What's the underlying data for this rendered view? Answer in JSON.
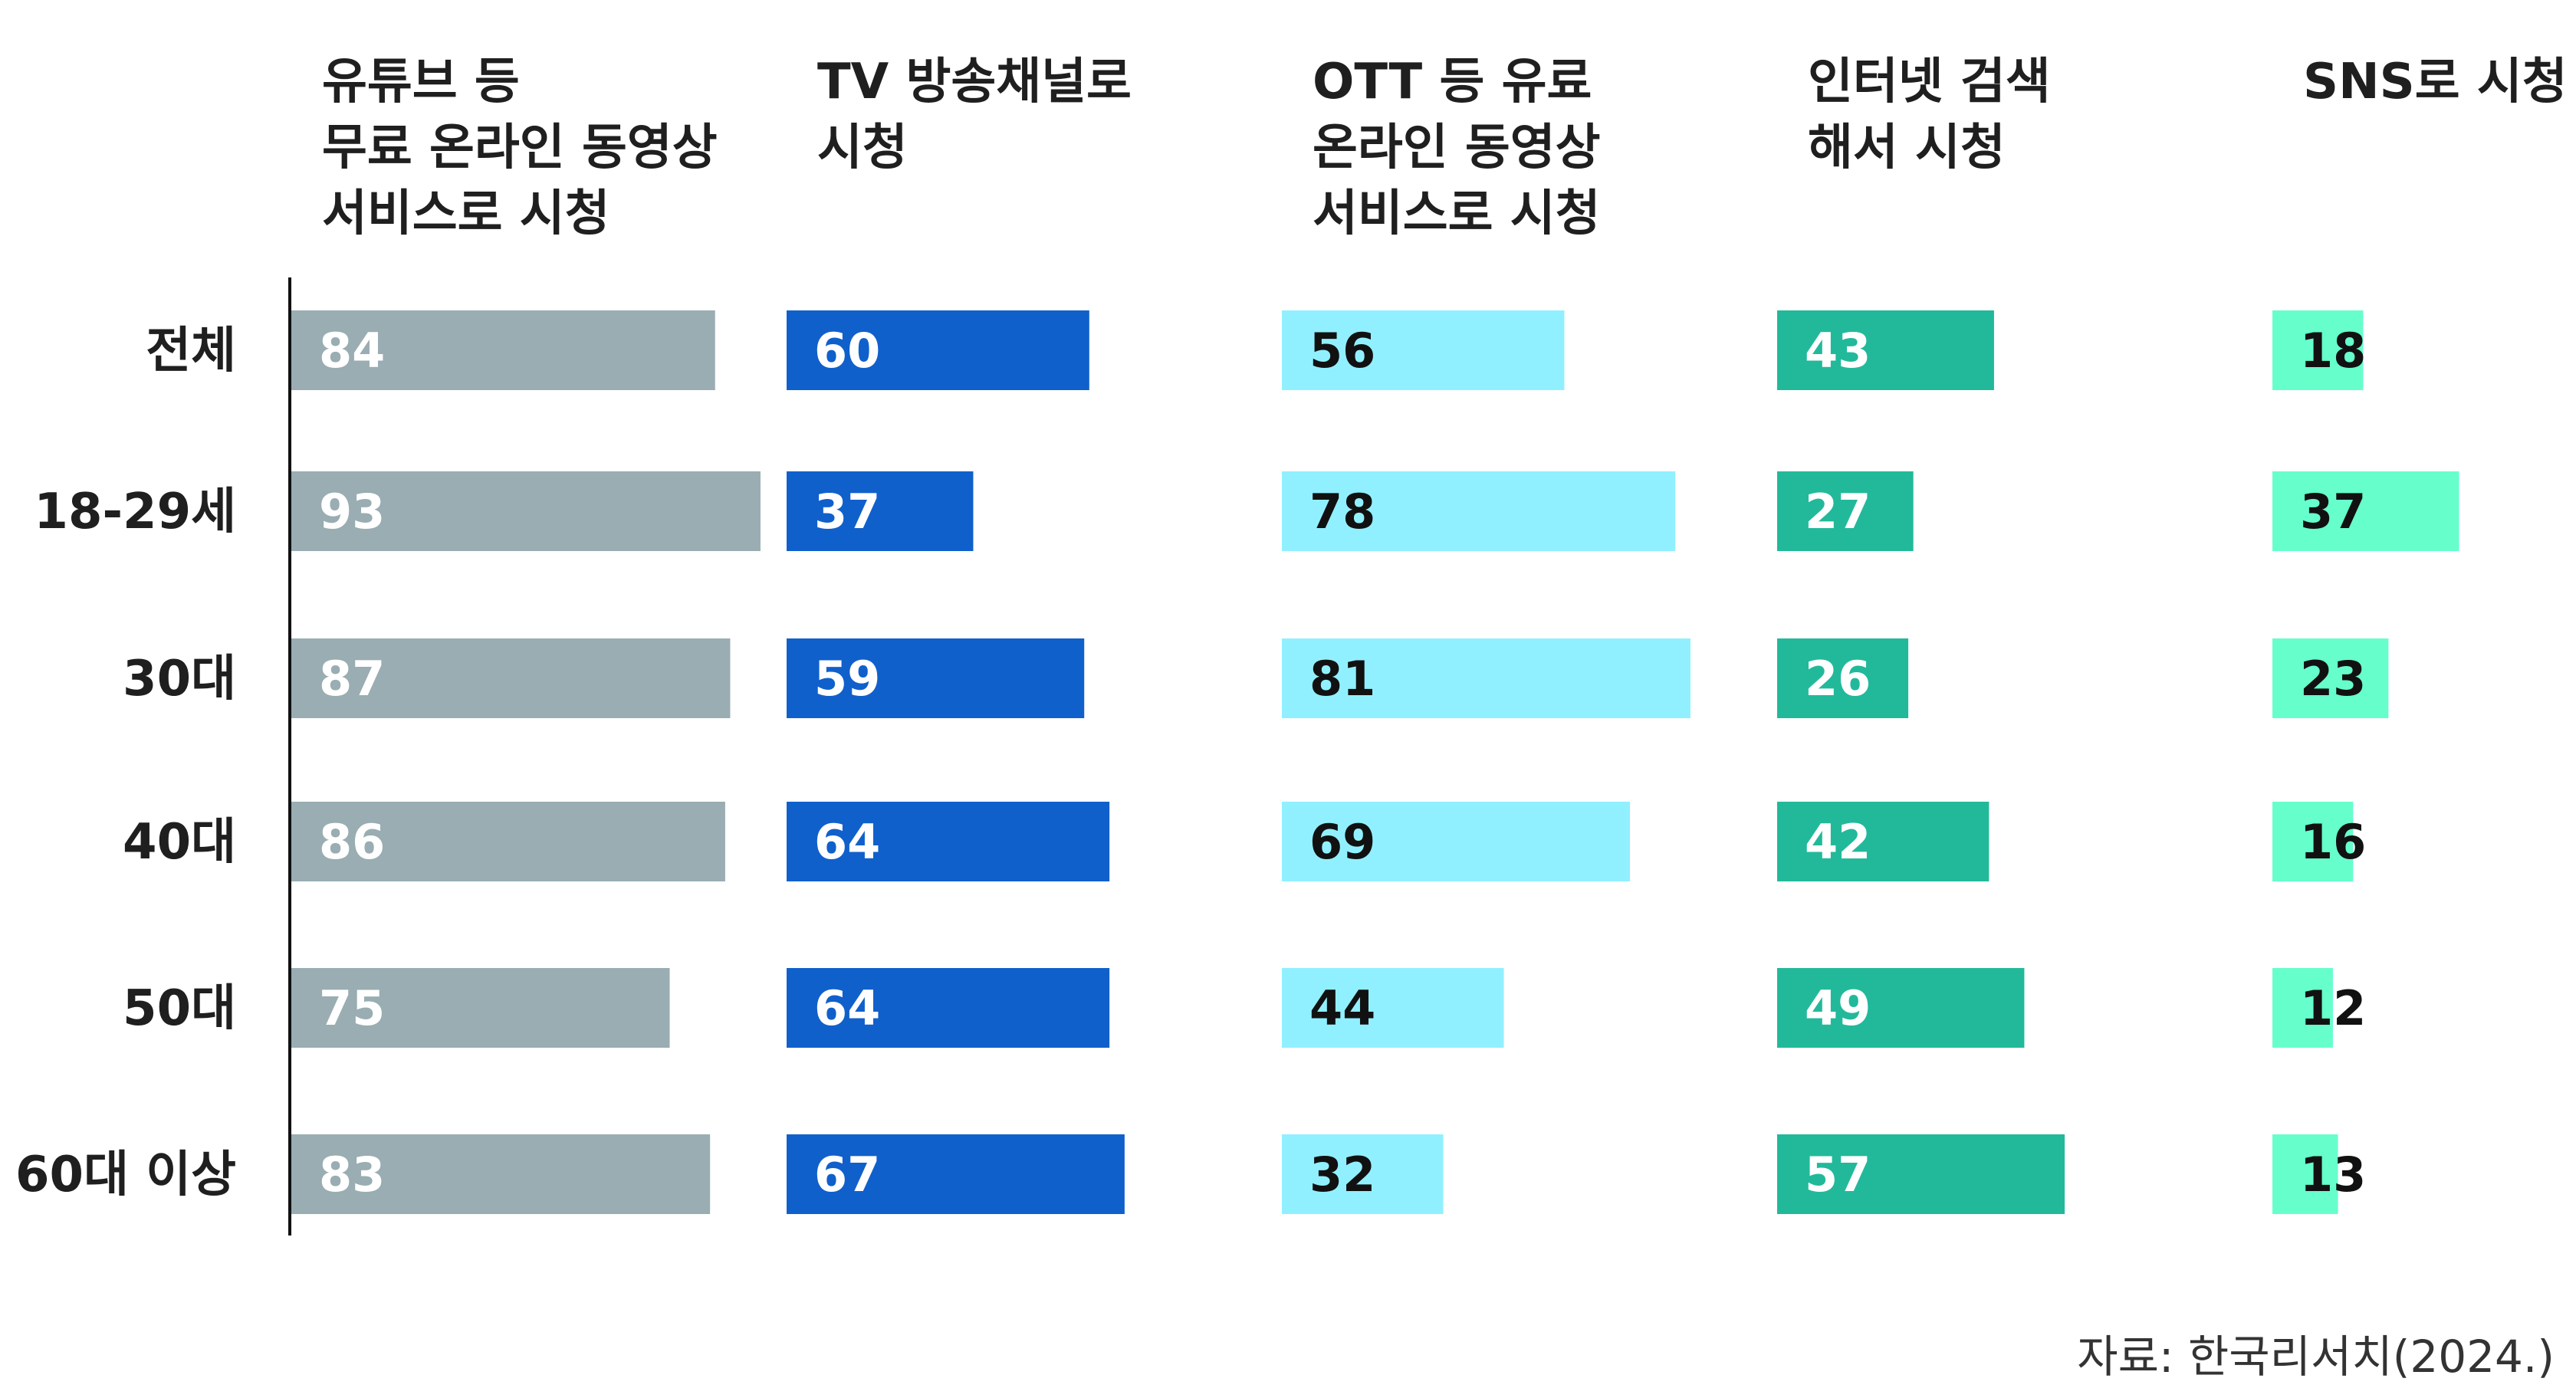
{
  "chart_data": {
    "type": "bar",
    "title": "",
    "categories": [
      "전체",
      "18-29세",
      "30대",
      "40대",
      "50대",
      "60대 이상"
    ],
    "series": [
      {
        "name_lines": [
          "유튜브 등",
          "무료 온라인 동영상",
          "서비스로 시청"
        ],
        "color": "#99adb2",
        "label_color": "#ffffff",
        "values": [
          84,
          93,
          87,
          86,
          75,
          83
        ]
      },
      {
        "name_lines": [
          "TV 방송채널로",
          "시청"
        ],
        "color": "#1060cc",
        "label_color": "#ffffff",
        "values": [
          60,
          37,
          59,
          64,
          64,
          67
        ]
      },
      {
        "name_lines": [
          "OTT 등 유료",
          "온라인 동영상",
          "서비스로 시청"
        ],
        "color": "#91f0ff",
        "label_color": "#111111",
        "values": [
          56,
          78,
          81,
          69,
          44,
          32
        ]
      },
      {
        "name_lines": [
          "인터넷 검색",
          "해서 시청"
        ],
        "color": "#22b99b",
        "label_color": "#ffffff",
        "values": [
          43,
          27,
          26,
          42,
          49,
          57
        ]
      },
      {
        "name_lines": [
          "SNS로 시청"
        ],
        "color": "#66ffcc",
        "label_color": "#111111",
        "values": [
          18,
          37,
          23,
          16,
          12,
          13
        ]
      }
    ],
    "source": "자료: 한국리서치(2024.)"
  }
}
